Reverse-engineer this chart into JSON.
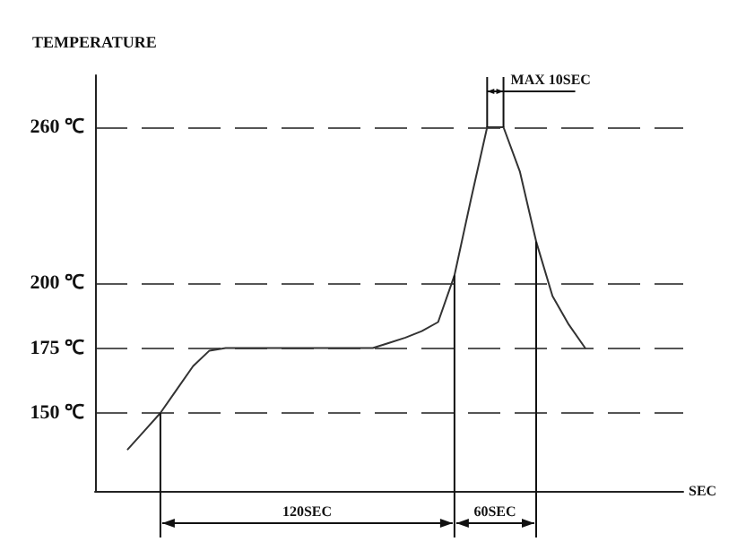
{
  "chart_data": {
    "type": "line",
    "ylabel": "TEMPERATURE",
    "xlabel": "SEC",
    "categories": [
      null,
      null,
      null,
      null,
      null,
      null,
      null,
      null,
      null,
      null,
      null,
      null,
      null,
      null,
      null,
      null,
      null,
      null,
      null,
      null,
      null,
      null,
      null,
      null,
      null,
      null,
      null,
      null,
      null,
      null,
      null,
      null,
      null,
      null,
      null,
      null,
      null
    ],
    "series": [
      {
        "color": "#333333",
        "values": [
          null,
          null,
          136,
          143,
          150,
          159,
          168,
          174,
          175,
          175,
          175,
          175,
          175,
          175,
          175,
          175,
          175,
          175,
          177,
          179,
          181.5,
          185,
          203,
          232,
          260,
          260,
          243,
          216,
          195,
          184,
          175,
          null,
          null,
          null,
          null,
          null,
          null
        ]
      }
    ],
    "ylim": [
      120,
      280
    ],
    "yticks": [
      {
        "value": 150,
        "label": "150 ℃"
      },
      {
        "value": 175,
        "label": "175 ℃"
      },
      {
        "value": 200,
        "label": "200 ℃"
      },
      {
        "value": 260,
        "label": "260 ℃"
      }
    ],
    "grid": "y",
    "line_style": "solid",
    "tick_labels": "y",
    "annotations": [
      "MAX 10SEC",
      "120SEC",
      "60SEC"
    ]
  }
}
